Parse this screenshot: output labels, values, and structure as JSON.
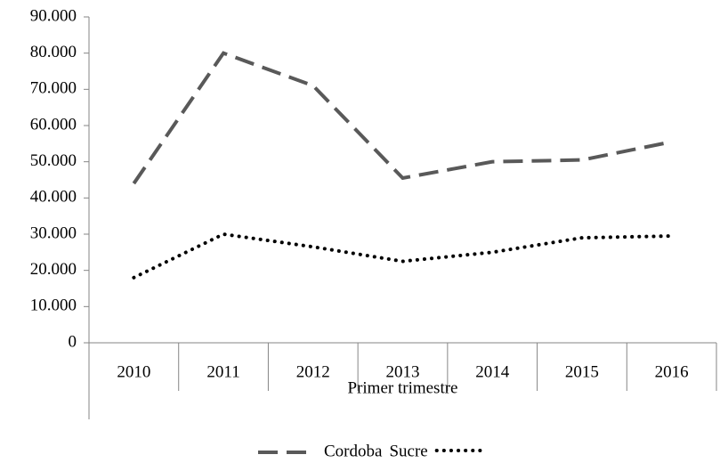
{
  "chart_data": {
    "type": "line",
    "categories": [
      "2010",
      "2011",
      "2012",
      "2013",
      "2014",
      "2015",
      "2016"
    ],
    "x_label": "Primer trimestre",
    "series": [
      {
        "name": "Cordoba",
        "color": "#595959",
        "dash": "dashed",
        "values": [
          44000,
          80000,
          71000,
          45500,
          50000,
          50500,
          55500
        ]
      },
      {
        "name": "Sucre",
        "color": "#000000",
        "dash": "dotted",
        "values": [
          18000,
          30000,
          26500,
          22500,
          25000,
          29000,
          29500
        ]
      }
    ],
    "ylim": [
      0,
      90000
    ],
    "yticks": [
      0,
      {
        "value": 10000,
        "label": "10.000"
      },
      {
        "value": 20000,
        "label": "20.000"
      },
      {
        "value": 30000,
        "label": "30.000"
      },
      {
        "value": 40000,
        "label": "40.000"
      },
      {
        "value": 50000,
        "label": "50.000"
      },
      {
        "value": 60000,
        "label": "60.000"
      },
      {
        "value": 70000,
        "label": "70.000"
      },
      {
        "value": 80000,
        "label": "80.000"
      },
      {
        "value": 90000,
        "label": "90.000"
      }
    ],
    "grid": false,
    "legend": "bottom"
  }
}
